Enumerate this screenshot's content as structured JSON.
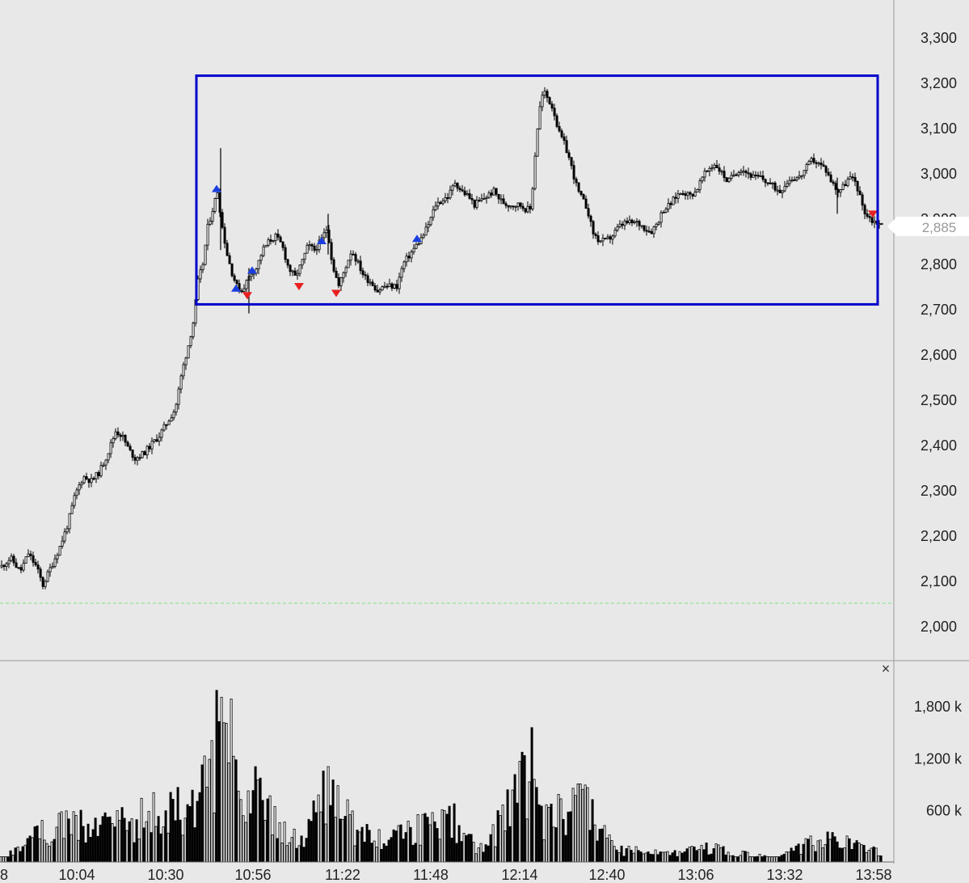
{
  "chart_data": {
    "type": "candlestick",
    "grid": false,
    "price_axis": {
      "ticks": [
        2000,
        2100,
        2200,
        2300,
        2400,
        2500,
        2600,
        2700,
        2800,
        2900,
        3000,
        3100,
        3200,
        3300
      ],
      "tick_labels": [
        "2,000",
        "2,100",
        "2,200",
        "2,300",
        "2,400",
        "2,500",
        "2,600",
        "2,700",
        "2,800",
        "2,900",
        "3,000",
        "3,100",
        "3,200",
        "3,300"
      ],
      "range": [
        1935,
        3350
      ],
      "position": "right"
    },
    "time_axis": {
      "tick_labels": [
        "8",
        "10:04",
        "10:30",
        "10:56",
        "11:22",
        "11:48",
        "12:14",
        "12:40",
        "13:06",
        "13:32",
        "13:58"
      ]
    },
    "last_price": {
      "value": 2885,
      "label": "2,885"
    },
    "reference_line": {
      "value": 2050,
      "color": "#7ee07e",
      "style": "dashed"
    },
    "range_box": {
      "price_high": 3215,
      "price_low": 2710,
      "color": "#0000cc"
    },
    "price_path": [
      [
        0,
        2130
      ],
      [
        12,
        2150
      ],
      [
        24,
        2120
      ],
      [
        34,
        2160
      ],
      [
        44,
        2130
      ],
      [
        52,
        2090
      ],
      [
        62,
        2130
      ],
      [
        72,
        2170
      ],
      [
        82,
        2220
      ],
      [
        92,
        2290
      ],
      [
        102,
        2330
      ],
      [
        112,
        2320
      ],
      [
        122,
        2340
      ],
      [
        132,
        2380
      ],
      [
        142,
        2430
      ],
      [
        150,
        2420
      ],
      [
        158,
        2390
      ],
      [
        166,
        2370
      ],
      [
        176,
        2380
      ],
      [
        186,
        2400
      ],
      [
        196,
        2420
      ],
      [
        206,
        2450
      ],
      [
        216,
        2480
      ],
      [
        224,
        2560
      ],
      [
        232,
        2620
      ],
      [
        238,
        2670
      ],
      [
        244,
        2760
      ],
      [
        250,
        2800
      ],
      [
        256,
        2880
      ],
      [
        262,
        2920
      ],
      [
        268,
        2960
      ],
      [
        274,
        2880
      ],
      [
        280,
        2820
      ],
      [
        286,
        2780
      ],
      [
        292,
        2750
      ],
      [
        298,
        2740
      ],
      [
        304,
        2760
      ],
      [
        310,
        2780
      ],
      [
        316,
        2790
      ],
      [
        324,
        2830
      ],
      [
        332,
        2850
      ],
      [
        340,
        2860
      ],
      [
        348,
        2840
      ],
      [
        356,
        2790
      ],
      [
        364,
        2770
      ],
      [
        372,
        2800
      ],
      [
        380,
        2840
      ],
      [
        388,
        2830
      ],
      [
        396,
        2850
      ],
      [
        404,
        2880
      ],
      [
        410,
        2800
      ],
      [
        418,
        2750
      ],
      [
        426,
        2790
      ],
      [
        434,
        2830
      ],
      [
        442,
        2800
      ],
      [
        450,
        2770
      ],
      [
        458,
        2760
      ],
      [
        466,
        2740
      ],
      [
        474,
        2750
      ],
      [
        482,
        2750
      ],
      [
        490,
        2750
      ],
      [
        498,
        2800
      ],
      [
        506,
        2820
      ],
      [
        514,
        2840
      ],
      [
        522,
        2860
      ],
      [
        530,
        2890
      ],
      [
        538,
        2930
      ],
      [
        546,
        2940
      ],
      [
        554,
        2950
      ],
      [
        562,
        2980
      ],
      [
        570,
        2960
      ],
      [
        578,
        2950
      ],
      [
        586,
        2930
      ],
      [
        594,
        2940
      ],
      [
        602,
        2950
      ],
      [
        610,
        2960
      ],
      [
        618,
        2940
      ],
      [
        626,
        2930
      ],
      [
        634,
        2930
      ],
      [
        642,
        2930
      ],
      [
        650,
        2920
      ],
      [
        656,
        2920
      ],
      [
        660,
        3020
      ],
      [
        664,
        3100
      ],
      [
        668,
        3160
      ],
      [
        672,
        3180
      ],
      [
        678,
        3160
      ],
      [
        684,
        3140
      ],
      [
        690,
        3090
      ],
      [
        696,
        3070
      ],
      [
        702,
        3040
      ],
      [
        708,
        3000
      ],
      [
        714,
        2960
      ],
      [
        720,
        2940
      ],
      [
        726,
        2920
      ],
      [
        732,
        2870
      ],
      [
        740,
        2850
      ],
      [
        748,
        2850
      ],
      [
        756,
        2860
      ],
      [
        764,
        2880
      ],
      [
        772,
        2890
      ],
      [
        780,
        2890
      ],
      [
        788,
        2890
      ],
      [
        796,
        2880
      ],
      [
        804,
        2870
      ],
      [
        812,
        2890
      ],
      [
        820,
        2920
      ],
      [
        828,
        2930
      ],
      [
        836,
        2950
      ],
      [
        844,
        2960
      ],
      [
        852,
        2950
      ],
      [
        860,
        2960
      ],
      [
        868,
        2990
      ],
      [
        876,
        3010
      ],
      [
        884,
        3020
      ],
      [
        892,
        3000
      ],
      [
        900,
        2980
      ],
      [
        908,
        3000
      ],
      [
        916,
        3010
      ],
      [
        924,
        3000
      ],
      [
        932,
        2990
      ],
      [
        940,
        2990
      ],
      [
        948,
        2980
      ],
      [
        956,
        2970
      ],
      [
        964,
        2960
      ],
      [
        972,
        2980
      ],
      [
        980,
        2990
      ],
      [
        988,
        2990
      ],
      [
        996,
        3010
      ],
      [
        1004,
        3030
      ],
      [
        1012,
        3020
      ],
      [
        1020,
        3010
      ],
      [
        1028,
        2980
      ],
      [
        1036,
        2960
      ],
      [
        1042,
        2970
      ],
      [
        1050,
        2990
      ],
      [
        1058,
        2980
      ],
      [
        1064,
        2940
      ],
      [
        1070,
        2910
      ],
      [
        1078,
        2895
      ],
      [
        1086,
        2890
      ],
      [
        1090,
        2885
      ]
    ],
    "buy_signals": [
      [
        268,
        2965
      ],
      [
        292,
        2745
      ],
      [
        312,
        2785
      ],
      [
        398,
        2850
      ],
      [
        516,
        2855
      ]
    ],
    "sell_signals": [
      [
        306,
        2730
      ],
      [
        370,
        2750
      ],
      [
        416,
        2735
      ],
      [
        1080,
        2910
      ]
    ],
    "volume_axis": {
      "ticks": [
        600000,
        1200000,
        1800000
      ],
      "tick_labels": [
        "600 k",
        "1,200 k",
        "1,800 k"
      ],
      "range": [
        0,
        2100000
      ]
    },
    "volume_spikes": [
      [
        0,
        30000
      ],
      [
        52,
        480000
      ],
      [
        90,
        580000
      ],
      [
        136,
        520000
      ],
      [
        220,
        860000
      ],
      [
        236,
        740000
      ],
      [
        248,
        1120000
      ],
      [
        262,
        1400000
      ],
      [
        268,
        1980000
      ],
      [
        274,
        1900000
      ],
      [
        280,
        1600000
      ],
      [
        286,
        1880000
      ],
      [
        292,
        940000
      ],
      [
        298,
        720000
      ],
      [
        306,
        820000
      ],
      [
        314,
        1100000
      ],
      [
        320,
        900000
      ],
      [
        338,
        640000
      ],
      [
        352,
        460000
      ],
      [
        372,
        300000
      ],
      [
        404,
        1100000
      ],
      [
        416,
        880000
      ],
      [
        446,
        400000
      ],
      [
        492,
        420000
      ],
      [
        526,
        560000
      ],
      [
        560,
        640000
      ],
      [
        578,
        320000
      ],
      [
        600,
        200000
      ],
      [
        658,
        1550000
      ],
      [
        664,
        860000
      ],
      [
        676,
        660000
      ],
      [
        690,
        780000
      ],
      [
        708,
        850000
      ],
      [
        716,
        900000
      ],
      [
        732,
        720000
      ],
      [
        760,
        180000
      ],
      [
        840,
        120000
      ],
      [
        872,
        220000
      ],
      [
        960,
        40000
      ],
      [
        1002,
        300000
      ],
      [
        1030,
        340000
      ],
      [
        1062,
        220000
      ],
      [
        1082,
        160000
      ]
    ],
    "volume_baseline": 60000
  },
  "ui": {
    "close_glyph": "×",
    "close_icon": "close-icon"
  }
}
